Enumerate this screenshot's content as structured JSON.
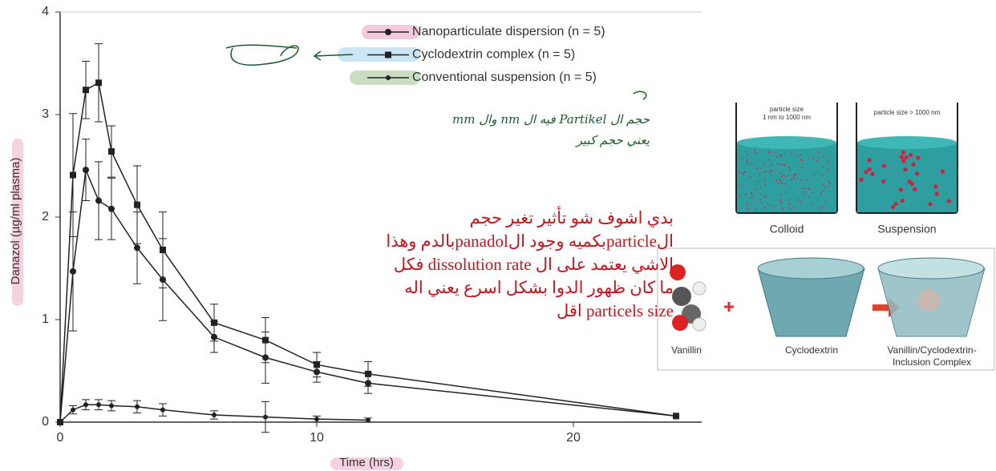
{
  "chart_data": {
    "type": "line",
    "x_label": "Time (hrs)",
    "y_label": "Danazol (µg/ml plasma)",
    "xlim": [
      0,
      25
    ],
    "ylim": [
      0,
      4
    ],
    "xticks": [
      0,
      10,
      20
    ],
    "yticks": [
      0,
      1,
      2,
      3,
      4
    ],
    "legend": "upper right",
    "series": [
      {
        "name": "Nanoparticulate dispersion (n = 5)",
        "color": "#222222",
        "marker": "circle",
        "x": [
          0,
          0.5,
          1,
          1.5,
          2,
          3,
          4,
          6,
          8,
          10,
          12,
          24
        ],
        "values": [
          0,
          1.47,
          2.46,
          2.16,
          2.08,
          1.7,
          1.39,
          0.83,
          0.63,
          0.49,
          0.38,
          0.06
        ],
        "errors": [
          null,
          0.58,
          0.3,
          0.38,
          0.3,
          0.35,
          0.4,
          0.15,
          0.25,
          0.1,
          0.1,
          null
        ]
      },
      {
        "name": "Cyclodextrin complex (n = 5)",
        "color": "#222222",
        "marker": "square",
        "x": [
          0,
          0.5,
          1,
          1.5,
          2,
          3,
          4,
          6,
          8,
          10,
          12,
          24
        ],
        "values": [
          0,
          2.41,
          3.24,
          3.31,
          2.64,
          2.12,
          1.68,
          0.97,
          0.8,
          0.56,
          0.47,
          0.06
        ],
        "errors": [
          null,
          0.6,
          0.28,
          0.38,
          0.25,
          0.38,
          0.37,
          0.18,
          0.22,
          0.12,
          0.12,
          null
        ]
      },
      {
        "name": "Conventional suspension (n = 5)",
        "color": "#222222",
        "marker": "dot",
        "x": [
          0,
          0.5,
          1,
          1.5,
          2,
          3,
          4,
          6,
          8,
          10,
          12
        ],
        "values": [
          0,
          0.12,
          0.17,
          0.17,
          0.16,
          0.15,
          0.12,
          0.07,
          0.05,
          0.03,
          0.02
        ],
        "errors": [
          null,
          0.04,
          0.05,
          0.05,
          0.05,
          0.06,
          0.06,
          0.04,
          0.15,
          0.03,
          0.02
        ]
      }
    ]
  },
  "handwritten_note": [
    "حجم ال Partikel فيه ال nm وال mm",
    "يعني حجم كبير"
  ],
  "comment": [
    "بدي اشوف شو تأثير تغير حجم",
    "الparticleبكميه وجود الpanadolبالدم وهذا",
    "الاشي يعتمد على ال dissolution rate فكل",
    "ما كان ظهور الدوا بشكل اسرع يعني اله",
    "particels size اقل"
  ],
  "colloid_diagram": {
    "colloid_size": [
      "particle size",
      "1 nm to 1000 nm"
    ],
    "suspension_size": "particle size > 1000 nm",
    "colloid": "Colloid",
    "suspension": "Suspension"
  },
  "inclusion_diagram": {
    "guest": "Vanillin",
    "host": "Cyclodextrin",
    "complex": [
      "Vanillin/Cyclodextrin-",
      "Inclusion Complex"
    ]
  }
}
